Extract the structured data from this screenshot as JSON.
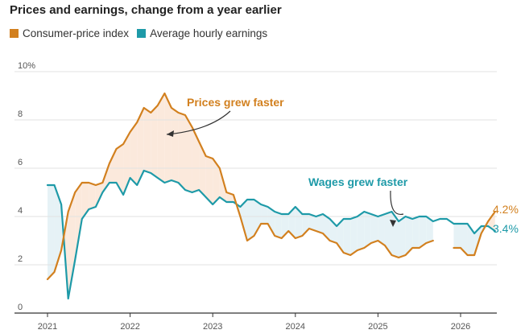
{
  "colors": {
    "cpi": "#d2801f",
    "wages": "#1e9aa8",
    "cpi_fill": "#fbe9dc",
    "wages_fill": "#e6f2f6",
    "grid": "#e2e2e2",
    "axis": "#333333"
  },
  "chart_data": {
    "type": "line",
    "title": "Prices and earnings, change from a year earlier",
    "ylim": [
      0,
      10
    ],
    "y_ticks": [
      {
        "value": 10,
        "label": "10%"
      },
      {
        "value": 8,
        "label": "8"
      },
      {
        "value": 6,
        "label": "6"
      },
      {
        "value": 4,
        "label": "4"
      },
      {
        "value": 2,
        "label": "2"
      },
      {
        "value": 0,
        "label": "0"
      }
    ],
    "x_ticks": [
      "2021",
      "2022",
      "2023",
      "2024",
      "2025",
      "2026"
    ],
    "grid": true,
    "legend_position": "top-left",
    "series": [
      {
        "key": "cpi",
        "name": "Consumer-price index",
        "values": [
          1.4,
          1.7,
          2.6,
          4.2,
          5.0,
          5.4,
          5.4,
          5.3,
          5.4,
          6.2,
          6.8,
          7.0,
          7.5,
          7.9,
          8.5,
          8.3,
          8.6,
          9.1,
          8.5,
          8.3,
          8.2,
          7.7,
          7.1,
          6.5,
          6.4,
          6.0,
          5.0,
          4.9,
          4.0,
          3.0,
          3.2,
          3.7,
          3.7,
          3.2,
          3.1,
          3.4,
          3.1,
          3.2,
          3.5,
          3.4,
          3.3,
          3.0,
          2.9,
          2.5,
          2.4,
          2.6,
          2.7,
          2.9,
          3.0,
          2.8,
          2.4,
          2.3,
          2.4,
          2.7,
          2.7,
          2.9,
          3.0,
          null,
          null,
          2.7,
          2.7,
          2.4,
          2.4,
          3.3,
          3.8,
          4.2
        ]
      },
      {
        "key": "wages",
        "name": "Average hourly earnings",
        "values": [
          5.3,
          5.3,
          4.5,
          0.6,
          2.2,
          3.9,
          4.3,
          4.4,
          5.0,
          5.4,
          5.4,
          4.9,
          5.6,
          5.3,
          5.9,
          5.8,
          5.6,
          5.4,
          5.5,
          5.4,
          5.1,
          5.0,
          5.1,
          4.8,
          4.5,
          4.8,
          4.6,
          4.6,
          4.4,
          4.7,
          4.7,
          4.5,
          4.4,
          4.2,
          4.1,
          4.1,
          4.4,
          4.1,
          4.1,
          4.0,
          4.1,
          3.9,
          3.6,
          3.9,
          3.9,
          4.0,
          4.2,
          4.1,
          4.0,
          4.1,
          4.2,
          3.8,
          4.0,
          3.9,
          4.0,
          4.0,
          3.8,
          3.9,
          3.9,
          3.7,
          3.7,
          3.7,
          3.3,
          3.6,
          3.6,
          3.4
        ]
      }
    ],
    "end_labels": {
      "cpi": "4.2%",
      "wages": "3.4%"
    },
    "annotations": {
      "prices": "Prices grew faster",
      "wages": "Wages grew faster"
    }
  }
}
